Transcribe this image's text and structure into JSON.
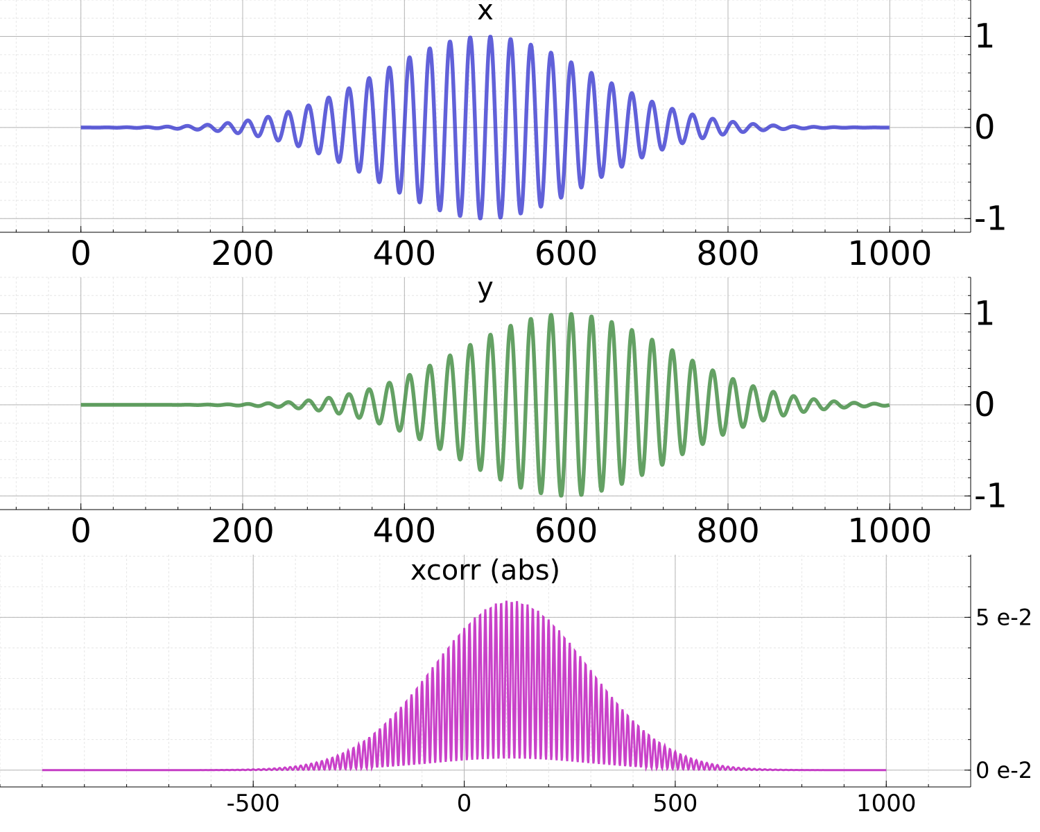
{
  "chart_data": [
    {
      "type": "line",
      "title": "x",
      "color": "#3a3acf",
      "x_ticks": [
        "0",
        "200",
        "400",
        "600",
        "800",
        "1000"
      ],
      "x_tick_values": [
        0,
        200,
        400,
        600,
        800,
        1000
      ],
      "y_ticks": [
        "-1",
        "0",
        "1"
      ],
      "y_tick_values": [
        -1,
        0,
        1
      ],
      "xlim": [
        -100,
        1100
      ],
      "ylim": [
        -1.15,
        1.4
      ],
      "grid": true,
      "y_axis_side": "right",
      "signal": {
        "n": 1000,
        "center": 500,
        "period": 25,
        "sigma": 130,
        "amplitude": 1.0,
        "delay": 0
      }
    },
    {
      "type": "line",
      "title": "y",
      "color": "#3d8a3d",
      "x_ticks": [
        "0",
        "200",
        "400",
        "600",
        "800",
        "1000"
      ],
      "x_tick_values": [
        0,
        200,
        400,
        600,
        800,
        1000
      ],
      "y_ticks": [
        "-1",
        "0",
        "1"
      ],
      "y_tick_values": [
        -1,
        0,
        1
      ],
      "xlim": [
        -100,
        1100
      ],
      "ylim": [
        -1.15,
        1.4
      ],
      "grid": true,
      "y_axis_side": "right",
      "signal": {
        "n": 1000,
        "center": 600,
        "period": 25,
        "sigma": 130,
        "amplitude": 1.0,
        "delay": 100
      }
    },
    {
      "type": "area",
      "title": "xcorr (abs)",
      "color": "#c020c0",
      "x_ticks": [
        "-500",
        "0",
        "500",
        "1000"
      ],
      "x_tick_values": [
        -500,
        0,
        500,
        1000
      ],
      "y_ticks": [
        "5 e-2",
        "0 e-2"
      ],
      "y_tick_values": [
        0.05,
        0
      ],
      "xlim": [
        -1100,
        1200
      ],
      "ylim": [
        -0.0055,
        0.0705
      ],
      "grid": true,
      "y_axis_side": "right",
      "envelope": {
        "x_start": -1000,
        "x_end": 1000,
        "peak_x": 110,
        "peak": 0.0555,
        "sigma": 185,
        "floor_ratio": 0.065,
        "period": 12.5
      }
    }
  ]
}
